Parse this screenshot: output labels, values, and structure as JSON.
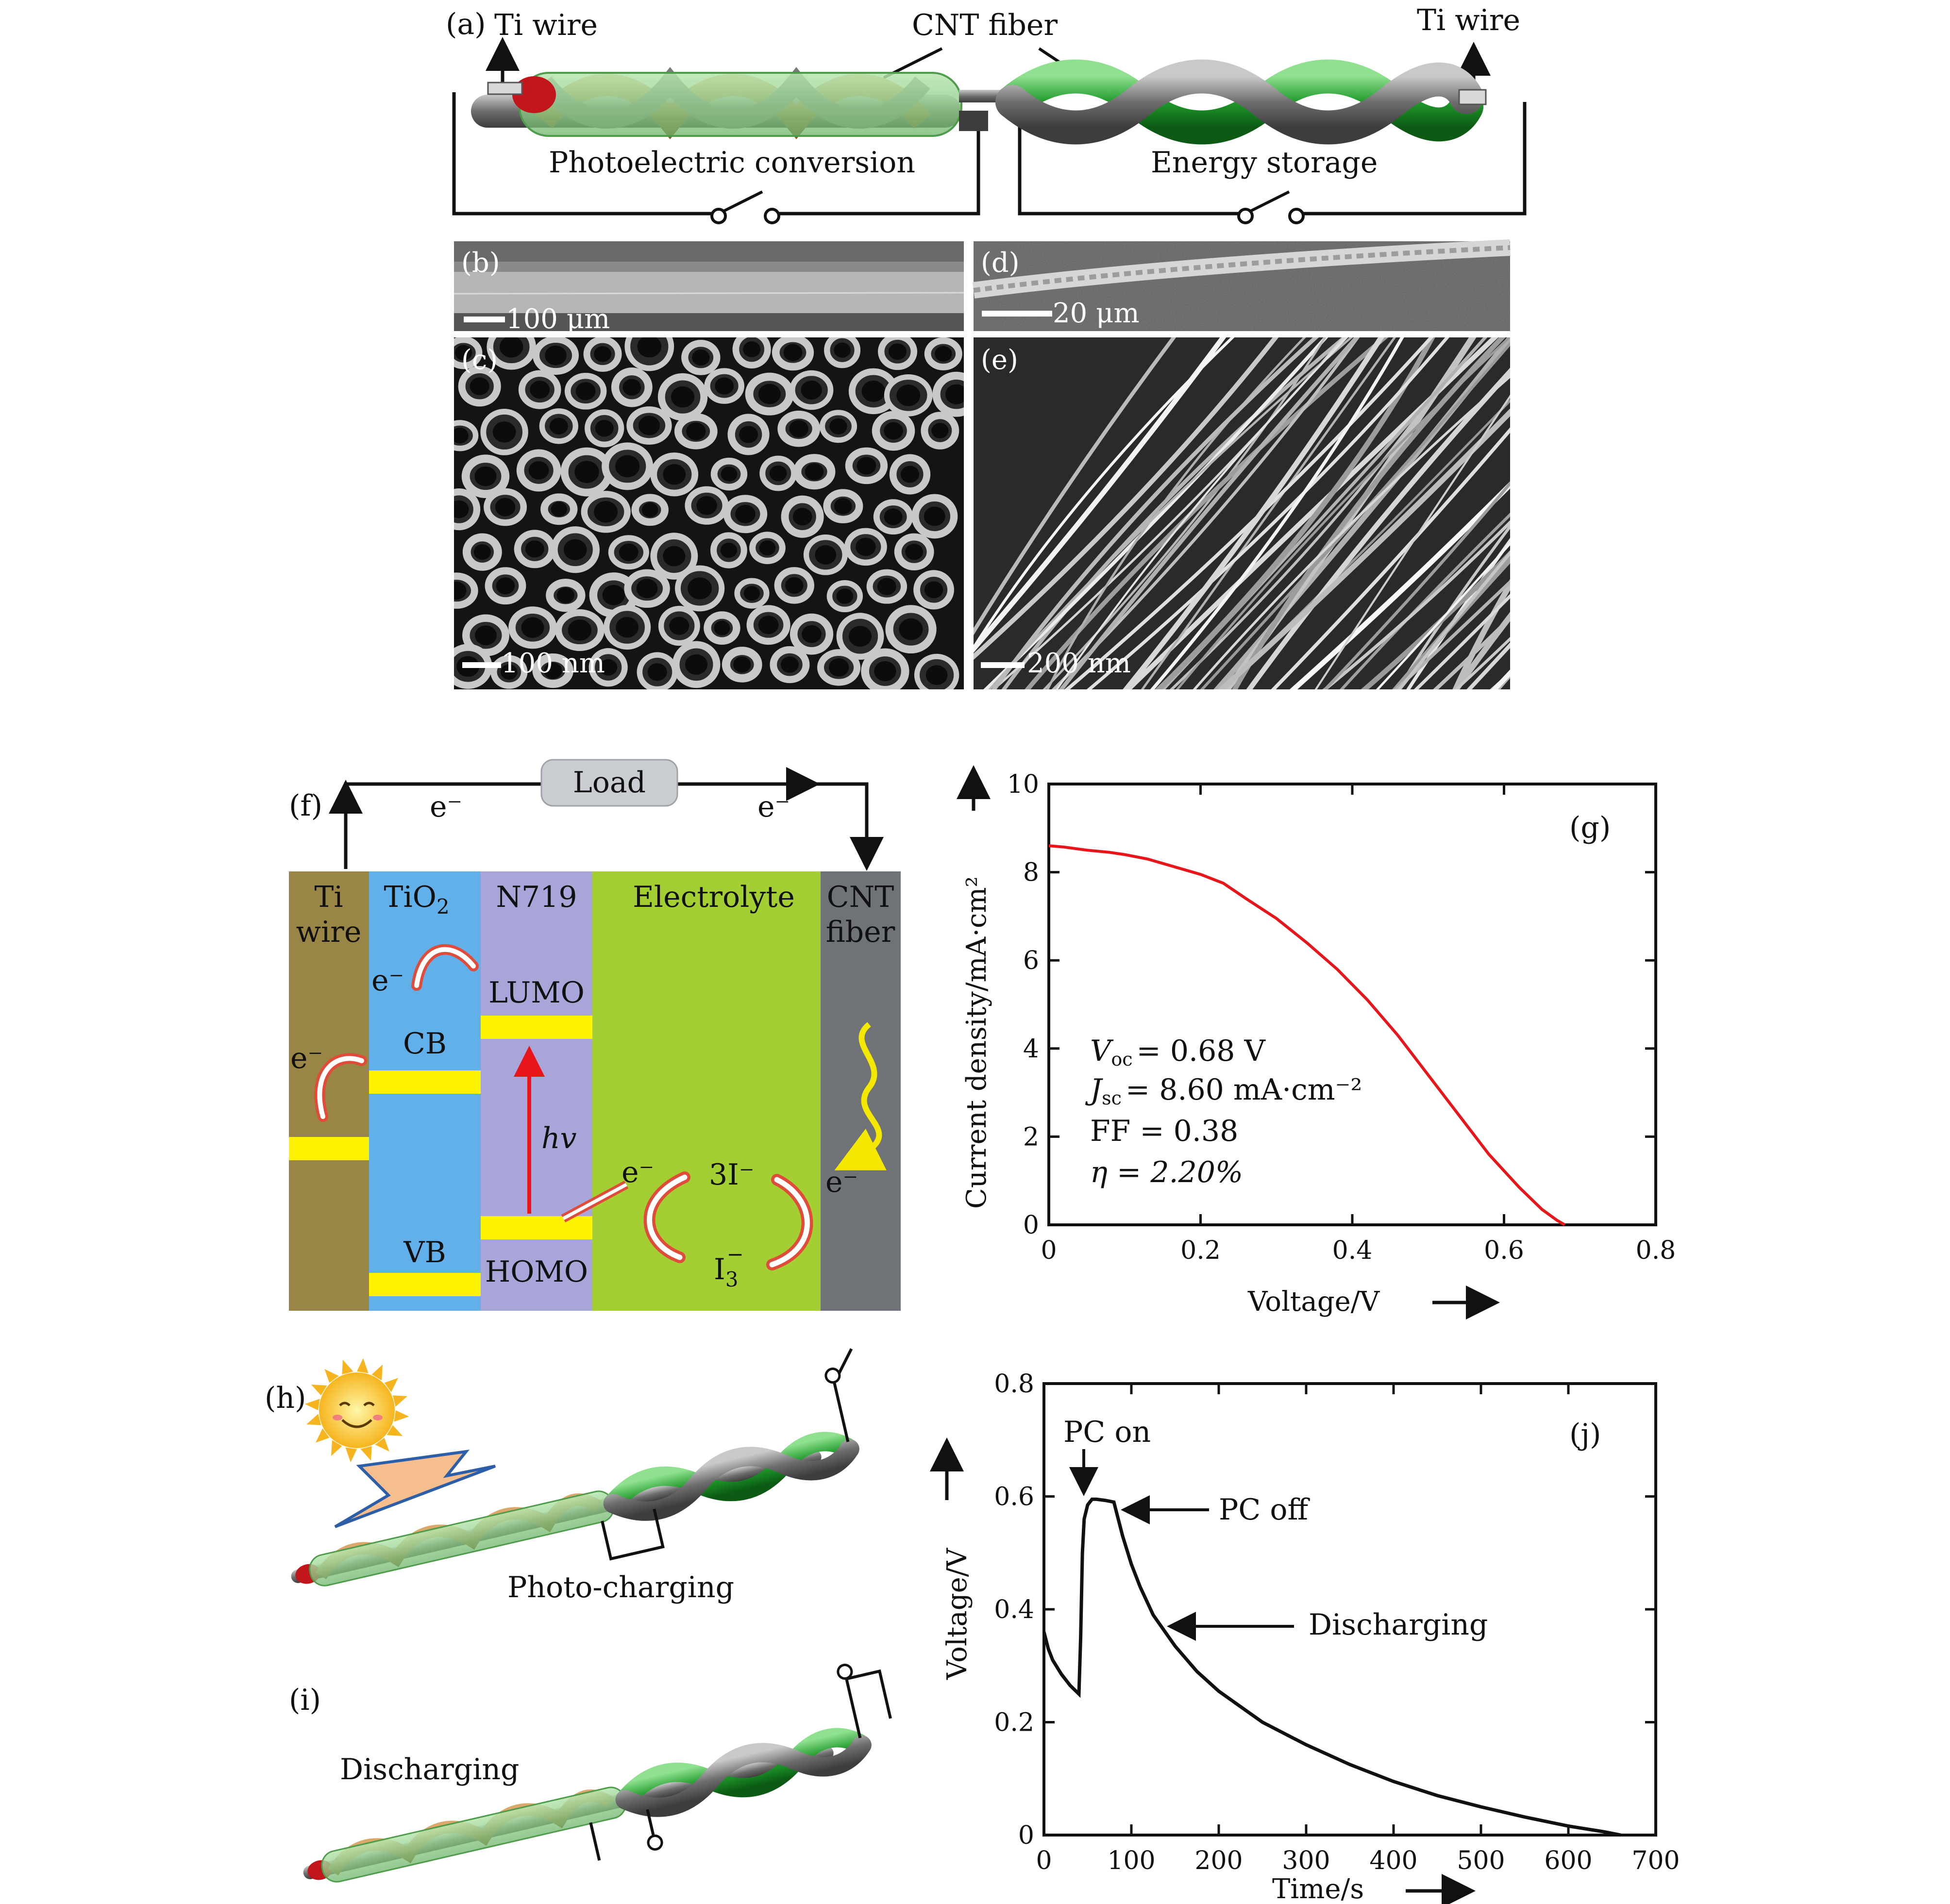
{
  "panel_a": {
    "label": "(a)",
    "ti_wire_left": "Ti wire",
    "ti_wire_right": "Ti wire",
    "cnt_fiber": "CNT fiber",
    "photoelectric": "Photoelectric conversion",
    "energy_storage": "Energy storage"
  },
  "sem": {
    "b": {
      "label": "(b)",
      "scale": "100 μm"
    },
    "c": {
      "label": "(c)",
      "scale": "100 nm"
    },
    "d": {
      "label": "(d)",
      "scale": "20 μm"
    },
    "e": {
      "label": "(e)",
      "scale": "200 nm"
    }
  },
  "panel_f": {
    "label": "(f)",
    "load": "Load",
    "electron": "e⁻",
    "layers": {
      "ti_line1": "Ti",
      "ti_line2": "wire",
      "tio2_main": "TiO",
      "tio2_sub": "2",
      "n719": "N719",
      "electrolyte": "Electrolyte",
      "cnt_line1": "CNT",
      "cnt_line2": "fiber"
    },
    "levels": {
      "cb": "CB",
      "vb": "VB",
      "lumo": "LUMO",
      "homo": "HOMO"
    },
    "hv": "hv",
    "iodide": "3I⁻",
    "triiodide_main": "I",
    "triiodide_sub": "3",
    "triiodide_sup": "−",
    "colors": {
      "ti": "#998545",
      "tio2": "#62b0ea",
      "n719": "#a8a6d9",
      "electrolyte": "#a3cf32",
      "cnt": "#6f7277",
      "band": "#fff200",
      "load": "#c9ccd1"
    }
  },
  "panel_g": {
    "label": "(g)",
    "xlabel": "Voltage/V",
    "ylabel": "Current density/mA·cm²",
    "xticks": [
      "0",
      "0.2",
      "0.4",
      "0.6",
      "0.8"
    ],
    "yticks": [
      "0",
      "2",
      "4",
      "6",
      "8",
      "10"
    ],
    "voc": "= 0.68 V",
    "jsc": "= 8.60 mA·cm⁻²",
    "ff": "FF = 0.38",
    "eta": "η = 2.20%"
  },
  "panel_h": {
    "label": "(h)",
    "caption": "Photo-charging"
  },
  "panel_i": {
    "label": "(i)",
    "caption": "Discharging"
  },
  "panel_j": {
    "label": "(j)",
    "xlabel": "Time/s",
    "ylabel": "Voltage/V",
    "xticks": [
      "0",
      "100",
      "200",
      "300",
      "400",
      "500",
      "600",
      "700"
    ],
    "yticks": [
      "0",
      "0.2",
      "0.4",
      "0.6",
      "0.8"
    ],
    "pc_on": "PC on",
    "pc_off": "PC off",
    "discharging": "Discharging"
  },
  "chart_data": [
    {
      "type": "line",
      "panel": "g",
      "xlabel": "Voltage/V",
      "ylabel": "Current density/mA·cm²",
      "xlim": [
        0,
        0.8
      ],
      "ylim": [
        0,
        10
      ],
      "series": [
        {
          "color": "#e8161b",
          "x": [
            0,
            0.02,
            0.05,
            0.08,
            0.1,
            0.13,
            0.16,
            0.2,
            0.23,
            0.26,
            0.3,
            0.34,
            0.38,
            0.42,
            0.46,
            0.5,
            0.54,
            0.58,
            0.62,
            0.65,
            0.67,
            0.68
          ],
          "y": [
            8.6,
            8.57,
            8.5,
            8.45,
            8.4,
            8.3,
            8.15,
            7.95,
            7.75,
            7.4,
            6.95,
            6.4,
            5.8,
            5.1,
            4.3,
            3.4,
            2.5,
            1.6,
            0.85,
            0.35,
            0.1,
            0
          ]
        }
      ]
    },
    {
      "type": "line",
      "panel": "j",
      "xlabel": "Time/s",
      "ylabel": "Voltage/V",
      "xlim": [
        0,
        700
      ],
      "ylim": [
        0,
        0.8
      ],
      "series": [
        {
          "color": "#111111",
          "x": [
            0,
            5,
            10,
            20,
            30,
            40,
            42,
            44,
            46,
            50,
            55,
            60,
            70,
            80,
            85,
            90,
            100,
            110,
            125,
            150,
            175,
            200,
            250,
            300,
            350,
            400,
            450,
            500,
            550,
            600,
            640,
            660
          ],
          "y": [
            0.36,
            0.33,
            0.31,
            0.285,
            0.265,
            0.25,
            0.35,
            0.5,
            0.56,
            0.585,
            0.595,
            0.595,
            0.593,
            0.59,
            0.56,
            0.53,
            0.48,
            0.44,
            0.39,
            0.335,
            0.29,
            0.255,
            0.2,
            0.16,
            0.125,
            0.095,
            0.07,
            0.05,
            0.032,
            0.016,
            0.006,
            0
          ]
        }
      ]
    }
  ]
}
